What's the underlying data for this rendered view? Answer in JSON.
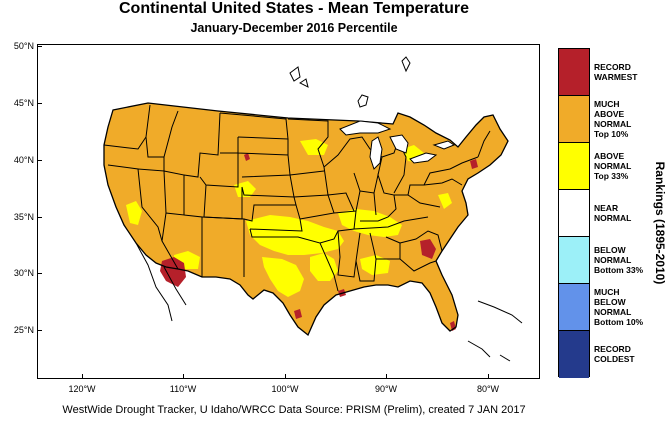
{
  "title": "Continental United States - Mean Temperature",
  "subtitle": "January-December 2016 Percentile",
  "footer": "WestWide Drought Tracker, U Idaho/WRCC Data Source: PRISM (Prelim), created  7 JAN 2017",
  "rankings_label": "Rankings (1895-2010)",
  "axes": {
    "y_ticks": [
      "50°N",
      "45°N",
      "40°N",
      "35°N",
      "30°N",
      "25°N"
    ],
    "x_ticks": [
      "120°W",
      "110°W",
      "100°W",
      "90°W",
      "80°W"
    ]
  },
  "legend": [
    {
      "lines": [
        "RECORD",
        "WARMEST"
      ],
      "color": "#b5202a"
    },
    {
      "lines": [
        "MUCH",
        "ABOVE",
        "NORMAL",
        "Top 10%"
      ],
      "color": "#f0ab29"
    },
    {
      "lines": [
        "ABOVE",
        "NORMAL",
        "Top 33%"
      ],
      "color": "#ffff00"
    },
    {
      "lines": [
        "NEAR",
        "NORMAL"
      ],
      "color": "#ffffff"
    },
    {
      "lines": [
        "BELOW",
        "NORMAL",
        "Bottom 33%"
      ],
      "color": "#9cf0f8"
    },
    {
      "lines": [
        "MUCH",
        "BELOW",
        "NORMAL",
        "Bottom 10%"
      ],
      "color": "#6292ea"
    },
    {
      "lines": [
        "RECORD",
        "COLDEST"
      ],
      "color": "#243a8c"
    }
  ]
}
